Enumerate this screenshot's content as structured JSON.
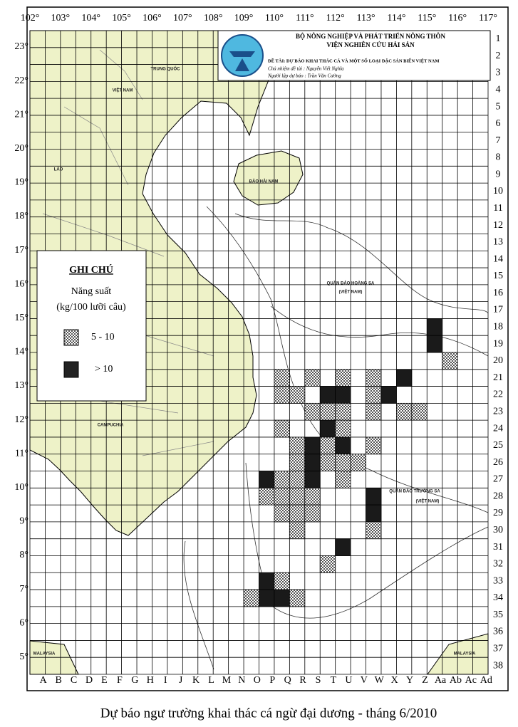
{
  "header": {
    "ministry": "BỘ NÔNG NGHIỆP VÀ PHÁT TRIỂN NÔNG THÔN",
    "institute": "VIỆN NGHIÊN CỨU HẢI SẢN",
    "project": "ĐỀ TÀI: DỰ BÁO KHAI THÁC CÁ VÀ MỘT SỐ LOẠI ĐẶC SẢN BIỂN VIỆT NAM",
    "lead": "Chủ nhiệm đề tài : Nguyễn Viết Nghĩa",
    "forecaster": "Người lập dự báo : Trần Văn Cường"
  },
  "axes": {
    "longitude_labels": [
      "102°",
      "103°",
      "104°",
      "105°",
      "106°",
      "107°",
      "108°",
      "109°",
      "110°",
      "111°",
      "112°",
      "113°",
      "114°",
      "115°",
      "116°",
      "117°"
    ],
    "latitude_labels": [
      "23°",
      "22°",
      "21°",
      "20°",
      "19°",
      "18°",
      "17°",
      "16°",
      "15°",
      "14°",
      "13°",
      "12°",
      "11°",
      "10°",
      "9°",
      "8°",
      "7°",
      "6°",
      "5°"
    ],
    "row_labels": [
      1,
      2,
      3,
      4,
      5,
      6,
      7,
      8,
      9,
      10,
      11,
      12,
      13,
      14,
      15,
      16,
      17,
      18,
      19,
      20,
      21,
      22,
      23,
      24,
      25,
      26,
      27,
      28,
      29,
      30,
      31,
      32,
      33,
      34,
      35,
      36,
      37,
      38
    ],
    "column_labels": [
      "A",
      "B",
      "C",
      "D",
      "E",
      "F",
      "G",
      "H",
      "I",
      "J",
      "K",
      "L",
      "M",
      "N",
      "O",
      "P",
      "Q",
      "R",
      "S",
      "T",
      "U",
      "V",
      "W",
      "X",
      "Y",
      "Z",
      "Aa",
      "Ab",
      "Ac",
      "Ad"
    ]
  },
  "legend": {
    "title": "GHI CHÚ",
    "unit_line1": "Năng suất",
    "unit_line2": "(kg/100 lưỡi câu)",
    "items": [
      {
        "label": "5 - 10"
      },
      {
        "label": "> 10"
      }
    ]
  },
  "map_labels": [
    {
      "text": "TRUNG QUỐC"
    },
    {
      "text": "VIỆT NAM"
    },
    {
      "text": "LÀO"
    },
    {
      "text": "CAMPUCHIA"
    },
    {
      "text": "QUẦN ĐẢO HOÀNG SA"
    },
    {
      "text": "(VIỆT NAM)"
    },
    {
      "text": "QUẦN ĐẢO TRƯỜNG SA"
    },
    {
      "text": "(VIỆT NAM)"
    },
    {
      "text": "MALAYSIA"
    },
    {
      "text": "MALAYSIA"
    },
    {
      "text": "ĐẢO HẢI NAM"
    }
  ],
  "caption": "Dự báo ngư trường khai thác cá ngừ đại dương - tháng 6/2010"
}
